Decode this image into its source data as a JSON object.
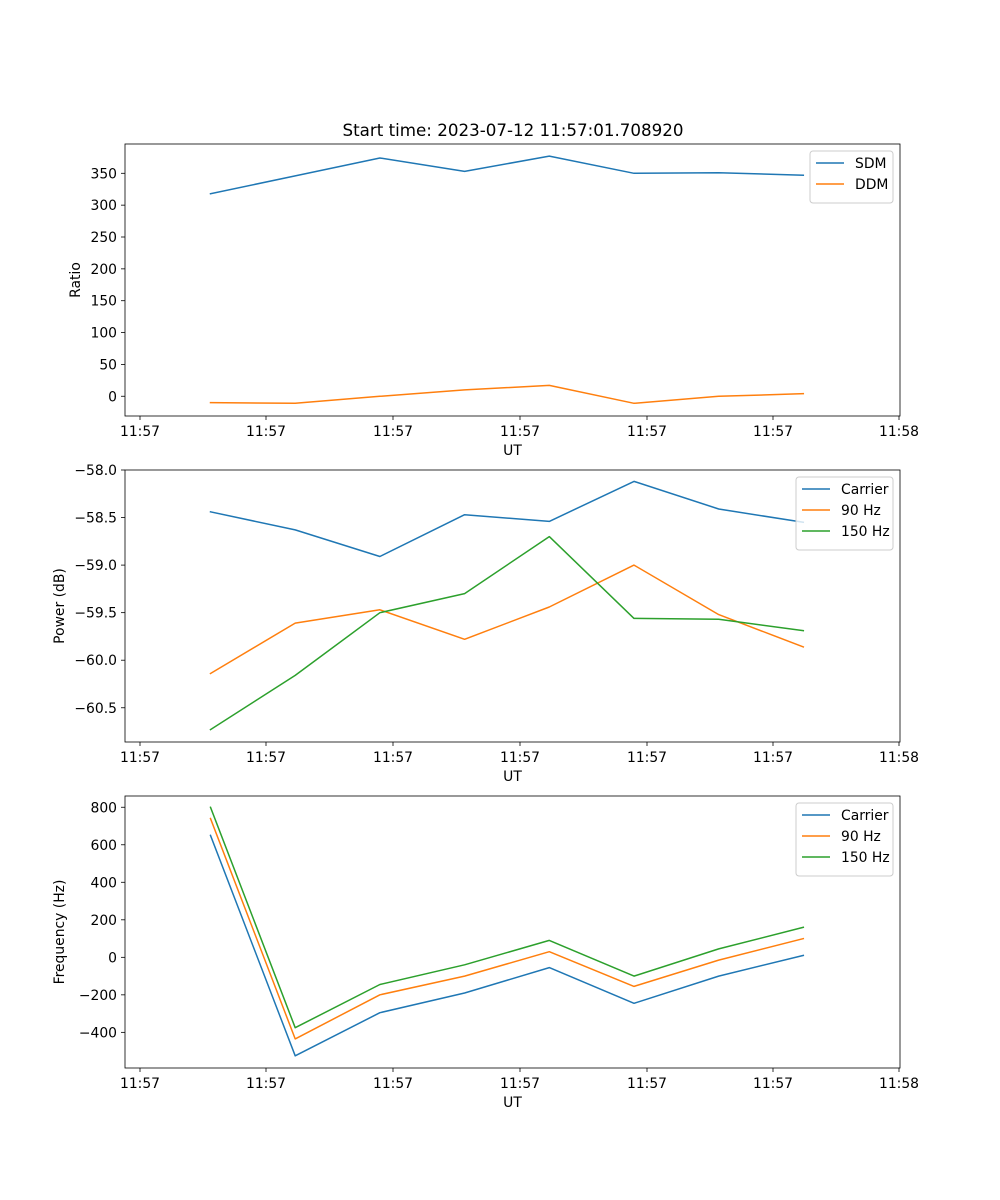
{
  "title": "Start time: 2023-07-12 11:57:01.708920",
  "colors": {
    "c0": "#1f77b4",
    "c1": "#ff7f0e",
    "c2": "#2ca02c"
  },
  "chart_data": [
    {
      "type": "line",
      "xlabel": "UT",
      "ylabel": "Ratio",
      "x_tick_labels": [
        "11:57",
        "11:57",
        "11:57",
        "11:57",
        "11:57",
        "11:57",
        "11:58"
      ],
      "xlim": [
        -0.18,
        8.88
      ],
      "x": [
        0.82,
        1.81,
        2.8,
        3.79,
        4.78,
        5.77,
        6.76,
        7.75
      ],
      "yticks": [
        0,
        50,
        100,
        150,
        200,
        250,
        300,
        350
      ],
      "ytick_labels": [
        "0",
        "50",
        "100",
        "150",
        "200",
        "250",
        "300",
        "350"
      ],
      "ylim": [
        -31,
        396
      ],
      "legend_location": "upper right",
      "series": [
        {
          "name": "SDM",
          "color": "#1f77b4",
          "values": [
            318,
            346,
            374,
            353,
            377,
            350,
            351,
            347
          ]
        },
        {
          "name": "DDM",
          "color": "#ff7f0e",
          "values": [
            -10,
            -11,
            0,
            10,
            17,
            -11,
            0,
            4
          ]
        }
      ]
    },
    {
      "type": "line",
      "xlabel": "UT",
      "ylabel": "Power (dB)",
      "x_tick_labels": [
        "11:57",
        "11:57",
        "11:57",
        "11:57",
        "11:57",
        "11:57",
        "11:58"
      ],
      "xlim": [
        -0.18,
        8.88
      ],
      "x": [
        0.82,
        1.81,
        2.8,
        3.79,
        4.78,
        5.77,
        6.76,
        7.75
      ],
      "yticks": [
        -60.5,
        -60.0,
        -59.5,
        -59.0,
        -58.5,
        -58.0
      ],
      "ytick_labels": [
        "−60.5",
        "−60.0",
        "−59.5",
        "−59.0",
        "−58.5",
        "−58.0"
      ],
      "ylim": [
        -60.86,
        -58.0
      ],
      "legend_location": "upper right",
      "series": [
        {
          "name": "Carrier",
          "color": "#1f77b4",
          "values": [
            -58.44,
            -58.63,
            -58.91,
            -58.47,
            -58.54,
            -58.12,
            -58.41,
            -58.55
          ]
        },
        {
          "name": "90 Hz",
          "color": "#ff7f0e",
          "values": [
            -60.14,
            -59.61,
            -59.47,
            -59.78,
            -59.44,
            -59.0,
            -59.52,
            -59.86
          ]
        },
        {
          "name": "150 Hz",
          "color": "#2ca02c",
          "values": [
            -60.73,
            -60.16,
            -59.5,
            -59.3,
            -58.7,
            -59.56,
            -59.57,
            -59.69
          ]
        }
      ]
    },
    {
      "type": "line",
      "xlabel": "UT",
      "ylabel": "Frequency (Hz)",
      "x_tick_labels": [
        "11:57",
        "11:57",
        "11:57",
        "11:57",
        "11:57",
        "11:57",
        "11:58"
      ],
      "xlim": [
        -0.18,
        8.88
      ],
      "x": [
        0.82,
        1.81,
        2.8,
        3.79,
        4.78,
        5.77,
        6.76,
        7.75
      ],
      "yticks": [
        -400,
        -200,
        0,
        200,
        400,
        600,
        800
      ],
      "ytick_labels": [
        "−400",
        "−200",
        "0",
        "200",
        "400",
        "600",
        "800"
      ],
      "ylim": [
        -590,
        860
      ],
      "legend_location": "upper right",
      "series": [
        {
          "name": "Carrier",
          "color": "#1f77b4",
          "values": [
            650,
            -525,
            -295,
            -190,
            -55,
            -245,
            -100,
            10
          ]
        },
        {
          "name": "90 Hz",
          "color": "#ff7f0e",
          "values": [
            740,
            -435,
            -200,
            -100,
            30,
            -155,
            -15,
            100
          ]
        },
        {
          "name": "150 Hz",
          "color": "#2ca02c",
          "values": [
            800,
            -375,
            -145,
            -40,
            90,
            -100,
            45,
            160
          ]
        }
      ]
    }
  ]
}
